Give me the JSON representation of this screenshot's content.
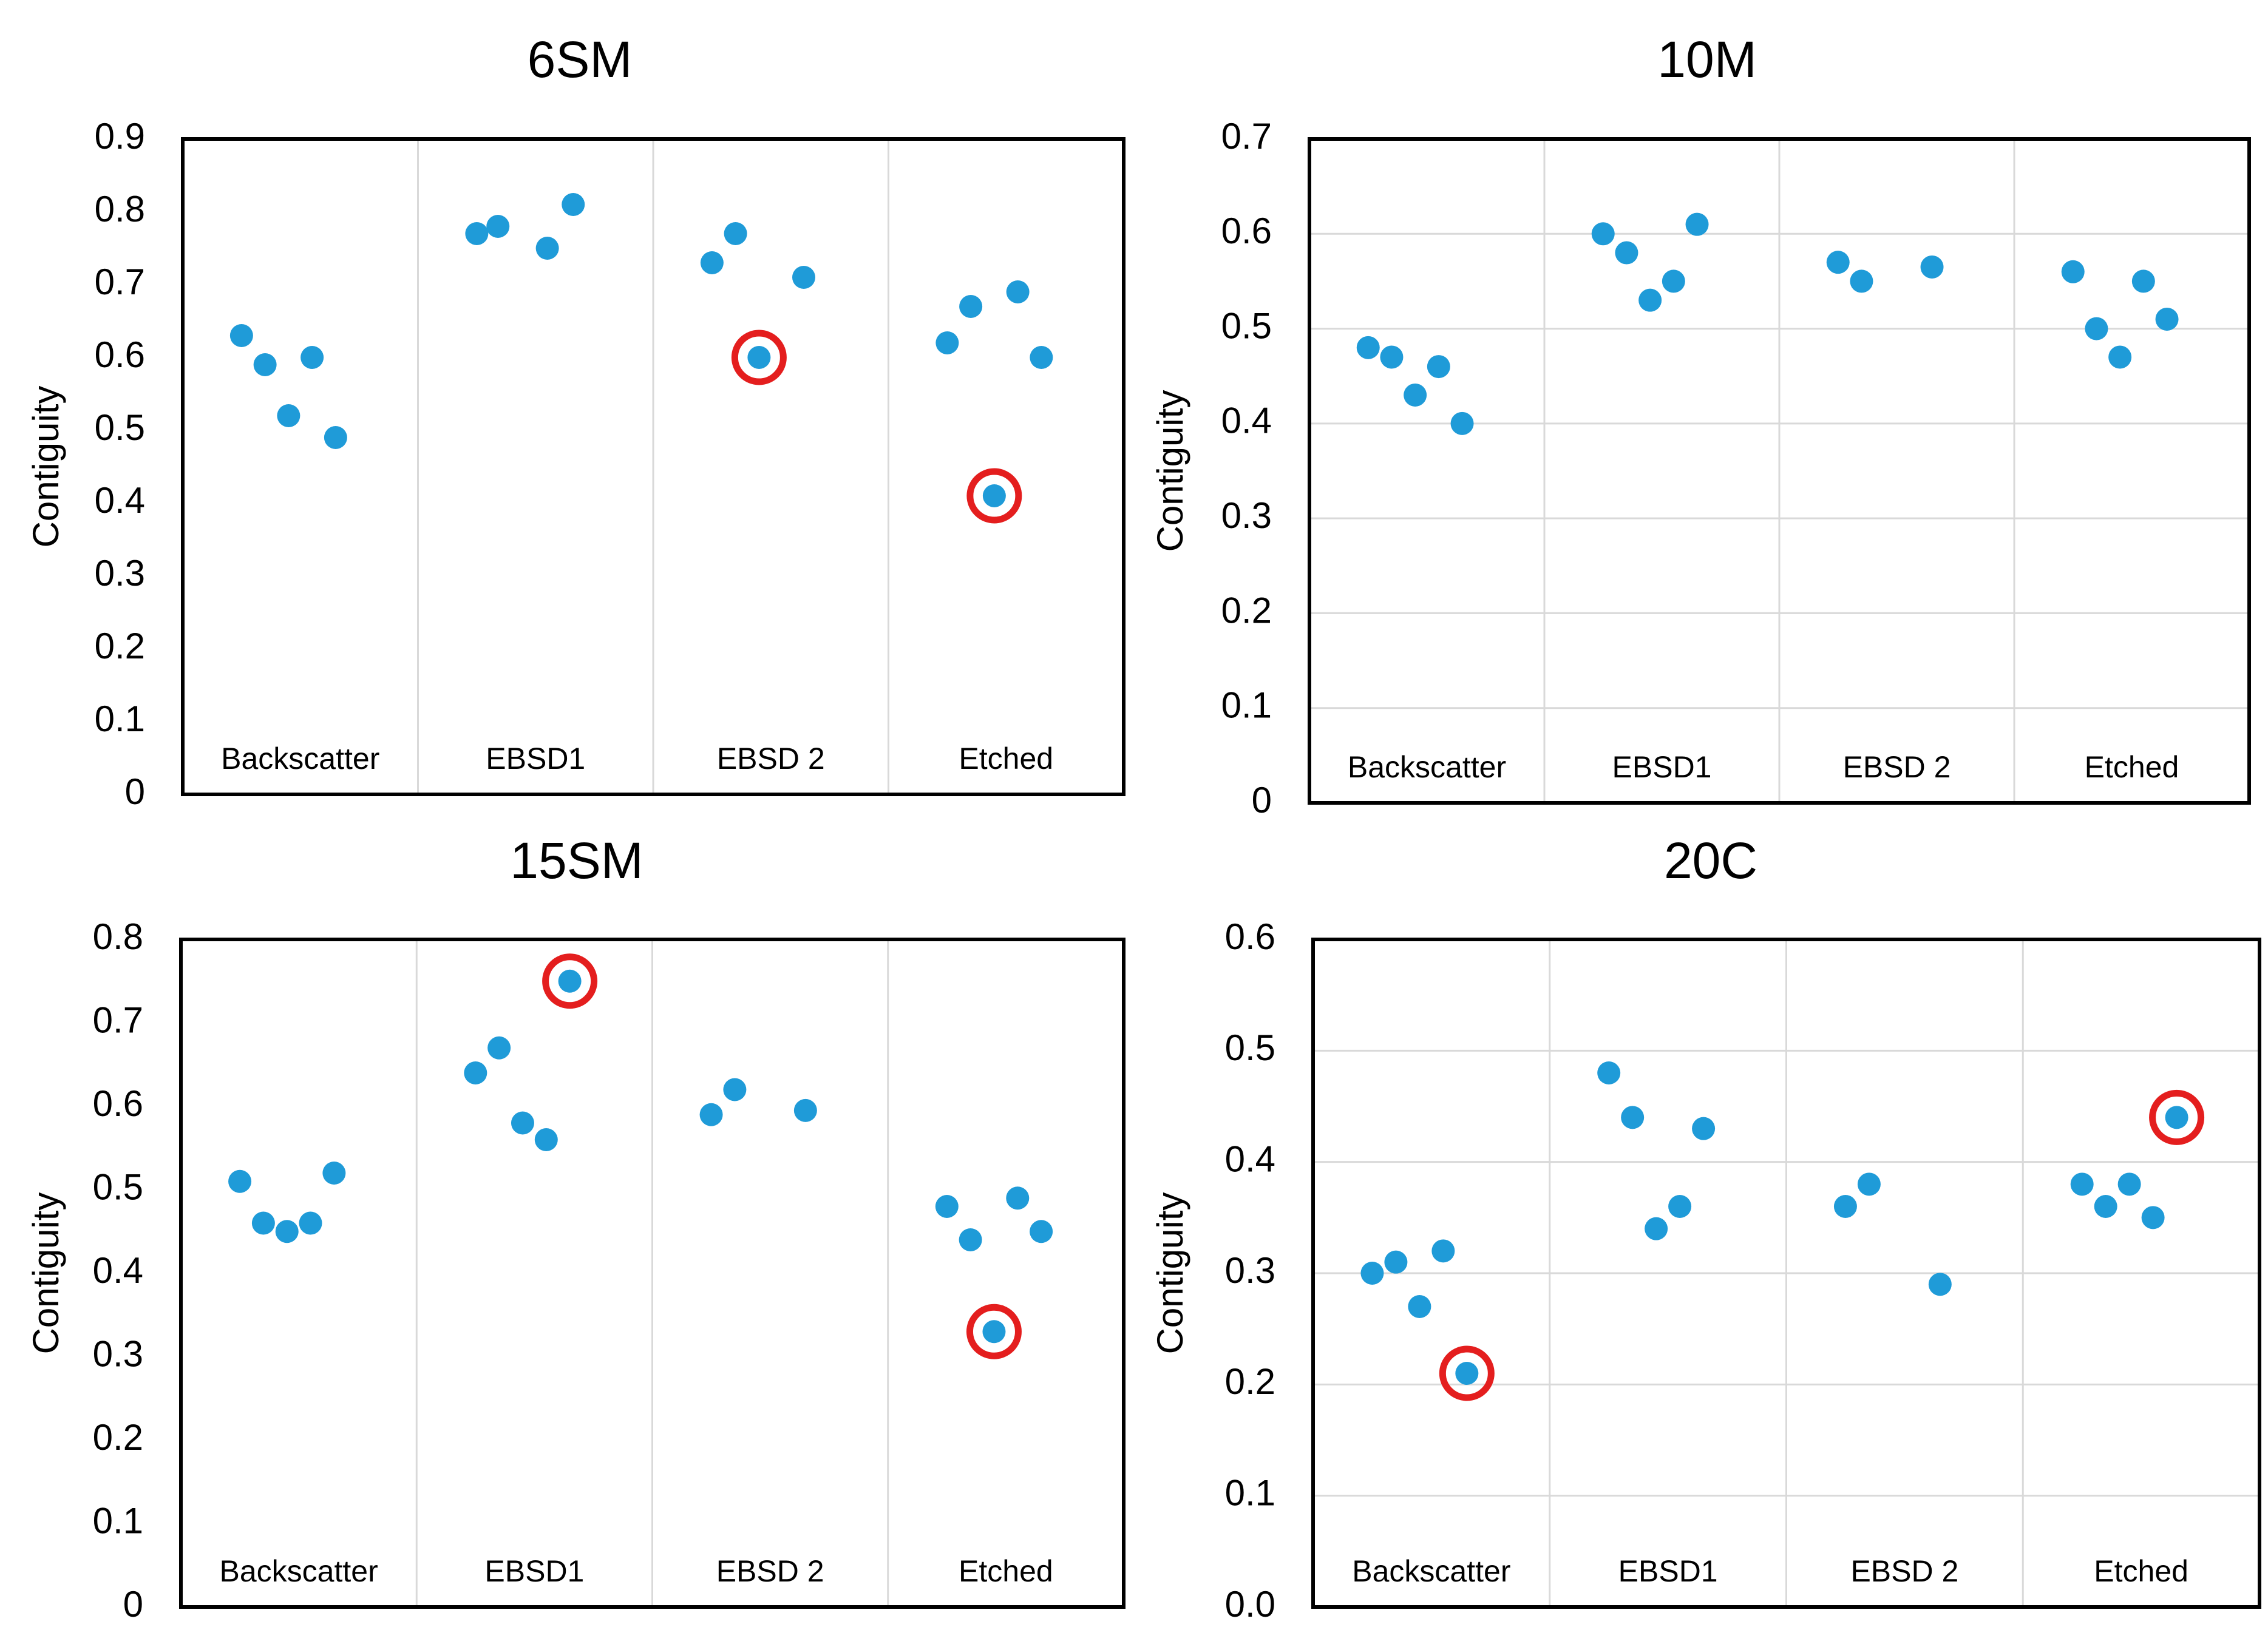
{
  "colors": {
    "point": "#1f9bd8",
    "highlight": "#e41e1e",
    "gridline": "#d9d9d9",
    "frame": "#000000"
  },
  "chart_data": [
    {
      "type": "scatter",
      "title": "6SM",
      "ylabel": "Contiguity",
      "xlabel": "",
      "categories": [
        "Backscatter",
        "EBSD1",
        "EBSD 2",
        "Etched"
      ],
      "ylim": [
        0,
        0.9
      ],
      "ytick_labels": [
        "0",
        "0.1",
        "0.2",
        "0.3",
        "0.4",
        "0.5",
        "0.6",
        "0.7",
        "0.8",
        "0.9"
      ],
      "gridlines": "vertical between categories",
      "points": [
        {
          "category": "Backscatter",
          "x": 0.75,
          "y": 0.63
        },
        {
          "category": "Backscatter",
          "x": 0.85,
          "y": 0.59
        },
        {
          "category": "Backscatter",
          "x": 0.95,
          "y": 0.52
        },
        {
          "category": "Backscatter",
          "x": 1.05,
          "y": 0.6
        },
        {
          "category": "Backscatter",
          "x": 1.15,
          "y": 0.49
        },
        {
          "category": "EBSD1",
          "x": 1.75,
          "y": 0.77
        },
        {
          "category": "EBSD1",
          "x": 1.84,
          "y": 0.78
        },
        {
          "category": "EBSD1",
          "x": 2.05,
          "y": 0.75
        },
        {
          "category": "EBSD1",
          "x": 2.16,
          "y": 0.81
        },
        {
          "category": "EBSD 2",
          "x": 2.75,
          "y": 0.73
        },
        {
          "category": "EBSD 2",
          "x": 2.85,
          "y": 0.77
        },
        {
          "category": "EBSD 2",
          "x": 2.95,
          "y": 0.6,
          "highlighted": true
        },
        {
          "category": "EBSD 2",
          "x": 3.14,
          "y": 0.71
        },
        {
          "category": "Etched",
          "x": 3.75,
          "y": 0.62
        },
        {
          "category": "Etched",
          "x": 3.85,
          "y": 0.67
        },
        {
          "category": "Etched",
          "x": 3.95,
          "y": 0.41,
          "highlighted": true
        },
        {
          "category": "Etched",
          "x": 4.05,
          "y": 0.69
        },
        {
          "category": "Etched",
          "x": 4.15,
          "y": 0.6
        }
      ]
    },
    {
      "type": "scatter",
      "title": "10M",
      "ylabel": "Contiguity",
      "xlabel": "",
      "categories": [
        "Backscatter",
        "EBSD1",
        "EBSD 2",
        "Etched"
      ],
      "ylim": [
        0,
        0.7
      ],
      "ytick_labels": [
        "0",
        "0.1",
        "0.2",
        "0.3",
        "0.4",
        "0.5",
        "0.6",
        "0.7"
      ],
      "gridlines": "horizontal and vertical",
      "points": [
        {
          "category": "Backscatter",
          "x": 0.75,
          "y": 0.48
        },
        {
          "category": "Backscatter",
          "x": 0.85,
          "y": 0.47
        },
        {
          "category": "Backscatter",
          "x": 0.95,
          "y": 0.43
        },
        {
          "category": "Backscatter",
          "x": 1.05,
          "y": 0.46
        },
        {
          "category": "Backscatter",
          "x": 1.15,
          "y": 0.4
        },
        {
          "category": "EBSD1",
          "x": 1.75,
          "y": 0.6
        },
        {
          "category": "EBSD1",
          "x": 1.85,
          "y": 0.58
        },
        {
          "category": "EBSD1",
          "x": 1.95,
          "y": 0.53
        },
        {
          "category": "EBSD1",
          "x": 2.05,
          "y": 0.55
        },
        {
          "category": "EBSD1",
          "x": 2.15,
          "y": 0.61
        },
        {
          "category": "EBSD 2",
          "x": 2.75,
          "y": 0.57
        },
        {
          "category": "EBSD 2",
          "x": 2.85,
          "y": 0.55
        },
        {
          "category": "EBSD 2",
          "x": 3.15,
          "y": 0.565
        },
        {
          "category": "Etched",
          "x": 3.75,
          "y": 0.56
        },
        {
          "category": "Etched",
          "x": 3.85,
          "y": 0.5
        },
        {
          "category": "Etched",
          "x": 3.95,
          "y": 0.47
        },
        {
          "category": "Etched",
          "x": 4.05,
          "y": 0.55
        },
        {
          "category": "Etched",
          "x": 4.15,
          "y": 0.51
        }
      ]
    },
    {
      "type": "scatter",
      "title": "15SM",
      "ylabel": "Contiguity",
      "xlabel": "",
      "categories": [
        "Backscatter",
        "EBSD1",
        "EBSD 2",
        "Etched"
      ],
      "ylim": [
        0,
        0.8
      ],
      "ytick_labels": [
        "0",
        "0.1",
        "0.2",
        "0.3",
        "0.4",
        "0.5",
        "0.6",
        "0.7",
        "0.8"
      ],
      "gridlines": "vertical between categories",
      "points": [
        {
          "category": "Backscatter",
          "x": 0.75,
          "y": 0.51
        },
        {
          "category": "Backscatter",
          "x": 0.85,
          "y": 0.46
        },
        {
          "category": "Backscatter",
          "x": 0.95,
          "y": 0.45
        },
        {
          "category": "Backscatter",
          "x": 1.05,
          "y": 0.46
        },
        {
          "category": "Backscatter",
          "x": 1.15,
          "y": 0.52
        },
        {
          "category": "EBSD1",
          "x": 1.75,
          "y": 0.64
        },
        {
          "category": "EBSD1",
          "x": 1.85,
          "y": 0.67
        },
        {
          "category": "EBSD1",
          "x": 1.95,
          "y": 0.58
        },
        {
          "category": "EBSD1",
          "x": 2.05,
          "y": 0.56
        },
        {
          "category": "EBSD1",
          "x": 2.15,
          "y": 0.75,
          "highlighted": true
        },
        {
          "category": "EBSD 2",
          "x": 2.75,
          "y": 0.59
        },
        {
          "category": "EBSD 2",
          "x": 2.85,
          "y": 0.62
        },
        {
          "category": "EBSD 2",
          "x": 3.15,
          "y": 0.595
        },
        {
          "category": "Etched",
          "x": 3.75,
          "y": 0.48
        },
        {
          "category": "Etched",
          "x": 3.85,
          "y": 0.44
        },
        {
          "category": "Etched",
          "x": 3.95,
          "y": 0.33,
          "highlighted": true
        },
        {
          "category": "Etched",
          "x": 4.05,
          "y": 0.49
        },
        {
          "category": "Etched",
          "x": 4.15,
          "y": 0.45
        }
      ]
    },
    {
      "type": "scatter",
      "title": "20C",
      "ylabel": "Contiguity",
      "xlabel": "",
      "categories": [
        "Backscatter",
        "EBSD1",
        "EBSD 2",
        "Etched"
      ],
      "ylim": [
        0,
        0.6
      ],
      "ytick_labels": [
        "0.0",
        "0.1",
        "0.2",
        "0.3",
        "0.4",
        "0.5",
        "0.6"
      ],
      "gridlines": "horizontal and vertical",
      "points": [
        {
          "category": "Backscatter",
          "x": 0.75,
          "y": 0.3
        },
        {
          "category": "Backscatter",
          "x": 0.85,
          "y": 0.31
        },
        {
          "category": "Backscatter",
          "x": 0.95,
          "y": 0.27
        },
        {
          "category": "Backscatter",
          "x": 1.05,
          "y": 0.32
        },
        {
          "category": "Backscatter",
          "x": 1.15,
          "y": 0.21,
          "highlighted": true
        },
        {
          "category": "EBSD1",
          "x": 1.75,
          "y": 0.48
        },
        {
          "category": "EBSD1",
          "x": 1.85,
          "y": 0.44
        },
        {
          "category": "EBSD1",
          "x": 1.95,
          "y": 0.34
        },
        {
          "category": "EBSD1",
          "x": 2.05,
          "y": 0.36
        },
        {
          "category": "EBSD1",
          "x": 2.15,
          "y": 0.43
        },
        {
          "category": "EBSD 2",
          "x": 2.75,
          "y": 0.36
        },
        {
          "category": "EBSD 2",
          "x": 2.85,
          "y": 0.38
        },
        {
          "category": "EBSD 2",
          "x": 3.15,
          "y": 0.29
        },
        {
          "category": "Etched",
          "x": 3.75,
          "y": 0.38
        },
        {
          "category": "Etched",
          "x": 3.85,
          "y": 0.36
        },
        {
          "category": "Etched",
          "x": 3.95,
          "y": 0.38
        },
        {
          "category": "Etched",
          "x": 4.05,
          "y": 0.35
        },
        {
          "category": "Etched",
          "x": 4.15,
          "y": 0.44,
          "highlighted": true
        }
      ]
    }
  ]
}
